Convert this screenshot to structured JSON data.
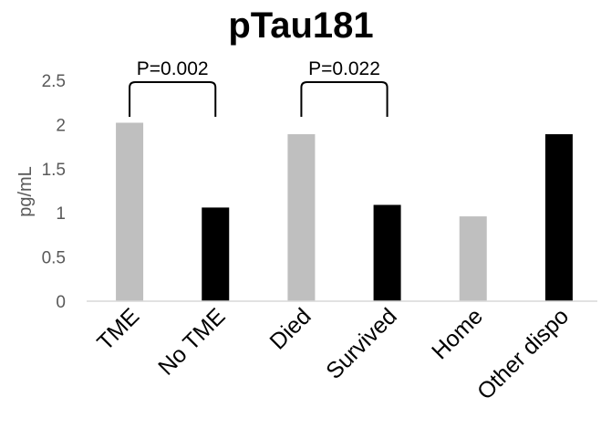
{
  "chart_data": {
    "type": "bar",
    "title": "pTau181",
    "ylabel": "pg/mL",
    "xlabel": "",
    "ylim": [
      0,
      2.5
    ],
    "yticks": [
      "0",
      "0.5",
      "1",
      "1.5",
      "2",
      "2.5"
    ],
    "grid": false,
    "legend": "none",
    "categories": [
      "TME",
      "No TME",
      "Died",
      "Survived",
      "Home",
      "Other dispo"
    ],
    "values": [
      2.02,
      1.06,
      1.89,
      1.09,
      0.96,
      1.89
    ],
    "bar_colors": [
      "#bfbfbf",
      "#000000",
      "#bfbfbf",
      "#000000",
      "#bfbfbf",
      "#000000"
    ],
    "annotations": [
      {
        "text": "P=0.002",
        "from": "TME",
        "to": "No TME",
        "bracket_top": 2.5
      },
      {
        "text": "P=0.022",
        "from": "Died",
        "to": "Survived",
        "bracket_top": 2.5
      }
    ]
  }
}
